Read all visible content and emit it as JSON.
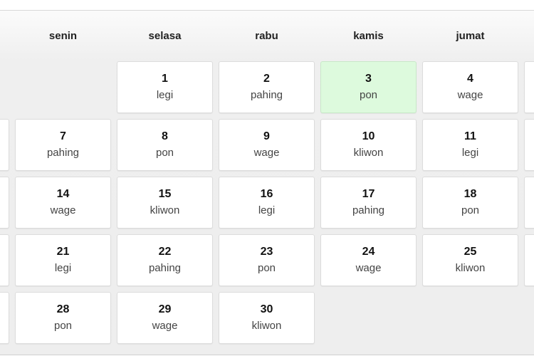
{
  "headers": [
    "",
    "senin",
    "selasa",
    "rabu",
    "kamis",
    "jumat",
    ""
  ],
  "today_color": "#ddfadd",
  "rows": [
    [
      null,
      null,
      {
        "day": "1",
        "pasaran": "legi"
      },
      {
        "day": "2",
        "pasaran": "pahing"
      },
      {
        "day": "3",
        "pasaran": "pon",
        "today": true
      },
      {
        "day": "4",
        "pasaran": "wage"
      },
      {
        "day": "",
        "pasaran": ""
      }
    ],
    [
      {
        "day": "",
        "pasaran": ""
      },
      {
        "day": "7",
        "pasaran": "pahing"
      },
      {
        "day": "8",
        "pasaran": "pon"
      },
      {
        "day": "9",
        "pasaran": "wage"
      },
      {
        "day": "10",
        "pasaran": "kliwon"
      },
      {
        "day": "11",
        "pasaran": "legi"
      },
      {
        "day": "",
        "pasaran": ""
      }
    ],
    [
      {
        "day": "",
        "pasaran": ""
      },
      {
        "day": "14",
        "pasaran": "wage"
      },
      {
        "day": "15",
        "pasaran": "kliwon"
      },
      {
        "day": "16",
        "pasaran": "legi"
      },
      {
        "day": "17",
        "pasaran": "pahing"
      },
      {
        "day": "18",
        "pasaran": "pon"
      },
      {
        "day": "",
        "pasaran": ""
      }
    ],
    [
      {
        "day": "",
        "pasaran": ""
      },
      {
        "day": "21",
        "pasaran": "legi"
      },
      {
        "day": "22",
        "pasaran": "pahing"
      },
      {
        "day": "23",
        "pasaran": "pon"
      },
      {
        "day": "24",
        "pasaran": "wage"
      },
      {
        "day": "25",
        "pasaran": "kliwon"
      },
      {
        "day": "",
        "pasaran": ""
      }
    ],
    [
      {
        "day": "",
        "pasaran": ""
      },
      {
        "day": "28",
        "pasaran": "pon"
      },
      {
        "day": "29",
        "pasaran": "wage"
      },
      {
        "day": "30",
        "pasaran": "kliwon"
      },
      null,
      null,
      null
    ]
  ]
}
